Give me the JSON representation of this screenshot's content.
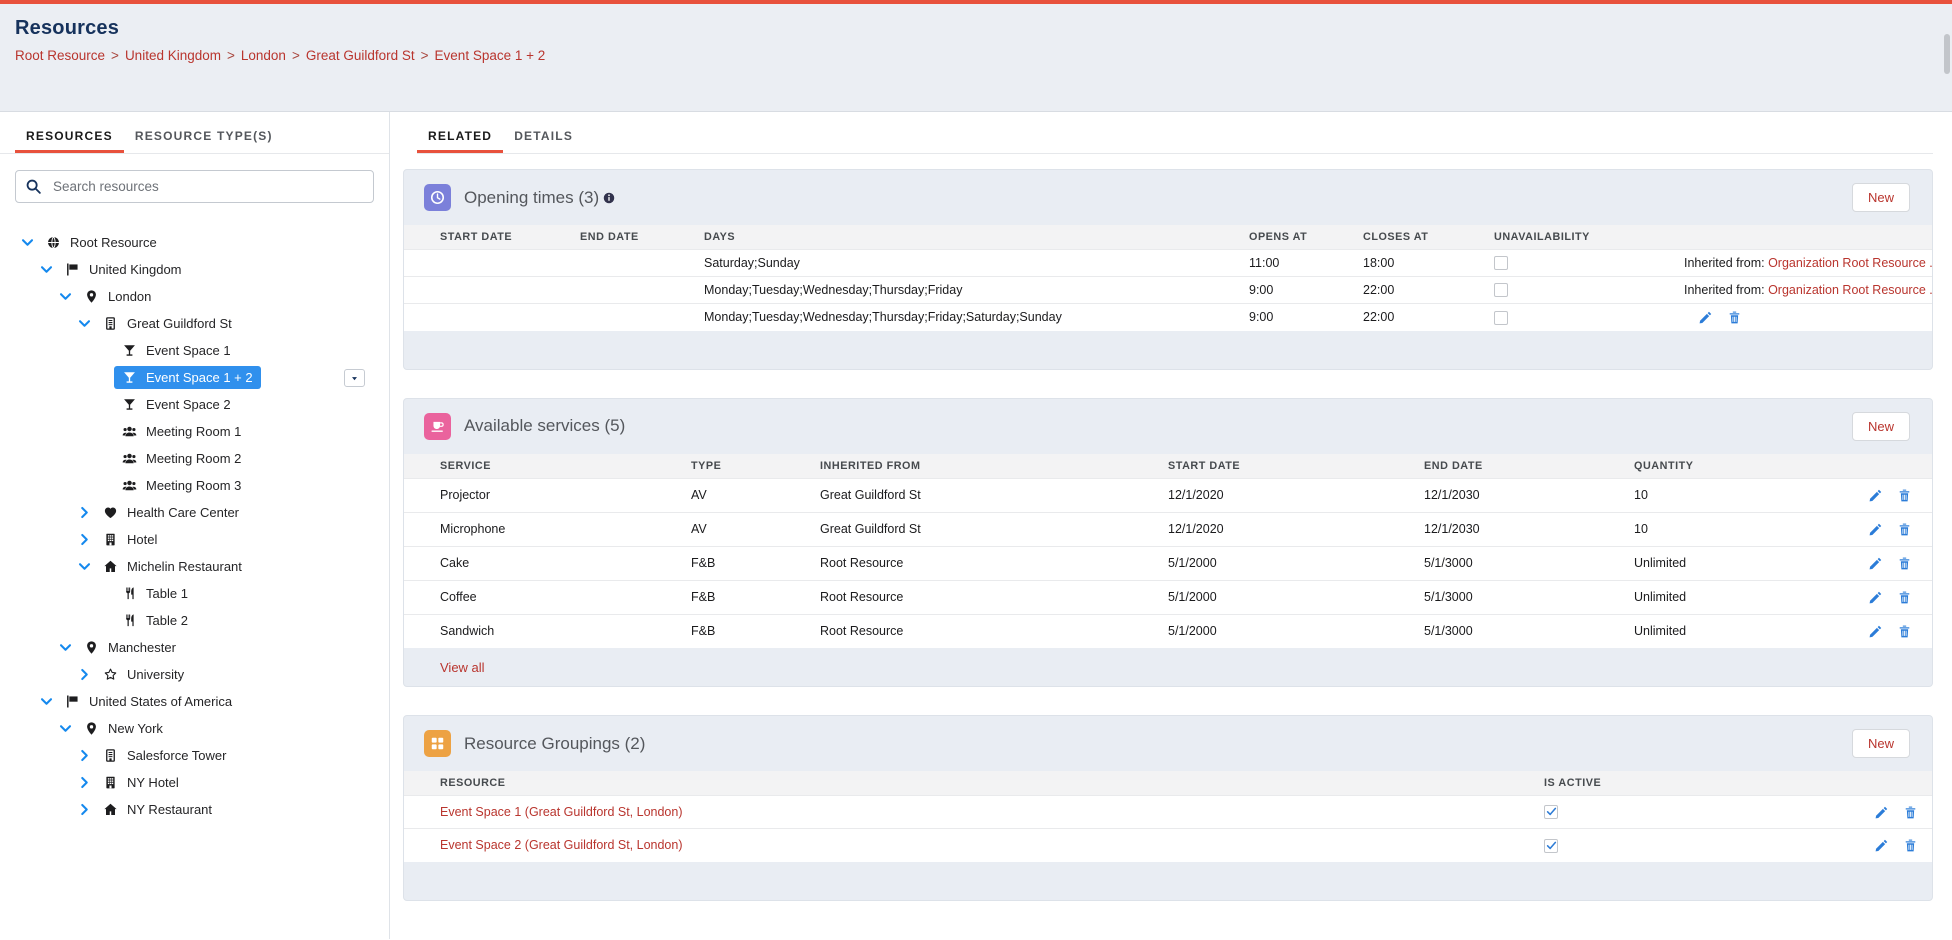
{
  "page": {
    "title": "Resources",
    "breadcrumb": [
      "Root Resource",
      "United Kingdom",
      "London",
      "Great Guildford St",
      "Event Space 1 + 2"
    ]
  },
  "colors": {
    "accent_red": "#e8513c",
    "link_red": "#b9352e",
    "title_navy": "#16325c",
    "selected_blue": "#3090ed",
    "chevron_blue": "#1589ee",
    "action_blue": "#2b7cd8",
    "opening_tile": "#7b80da",
    "services_tile": "#ea639d",
    "groupings_tile": "#eda243"
  },
  "sidebar": {
    "tabs": [
      {
        "label": "RESOURCES",
        "active": true
      },
      {
        "label": "RESOURCE TYPE(S)",
        "active": false
      }
    ],
    "search_placeholder": "Search resources",
    "tree": [
      {
        "label": "Root Resource",
        "icon": "globe-icon",
        "level": 0,
        "expand": "down"
      },
      {
        "label": "United Kingdom",
        "icon": "flag-icon",
        "level": 1,
        "expand": "down"
      },
      {
        "label": "London",
        "icon": "pin-icon",
        "level": 2,
        "expand": "down"
      },
      {
        "label": "Great Guildford St",
        "icon": "building-outline-icon",
        "level": 3,
        "expand": "down"
      },
      {
        "label": "Event Space 1",
        "icon": "cocktail-icon",
        "level": 4,
        "expand": "none"
      },
      {
        "label": "Event Space 1 + 2",
        "icon": "cocktail-icon",
        "level": 4,
        "expand": "none",
        "selected": true,
        "has_menu": true
      },
      {
        "label": "Event Space 2",
        "icon": "cocktail-icon",
        "level": 4,
        "expand": "none"
      },
      {
        "label": "Meeting Room 1",
        "icon": "people-icon",
        "level": 4,
        "expand": "none"
      },
      {
        "label": "Meeting Room 2",
        "icon": "people-icon",
        "level": 4,
        "expand": "none"
      },
      {
        "label": "Meeting Room 3",
        "icon": "people-icon",
        "level": 4,
        "expand": "none"
      },
      {
        "label": "Health Care Center",
        "icon": "heart-icon",
        "level": 3,
        "expand": "right"
      },
      {
        "label": "Hotel",
        "icon": "hotel-icon",
        "level": 3,
        "expand": "right"
      },
      {
        "label": "Michelin Restaurant",
        "icon": "home-icon",
        "level": 3,
        "expand": "down"
      },
      {
        "label": "Table 1",
        "icon": "utensils-icon",
        "level": 4,
        "expand": "none"
      },
      {
        "label": "Table 2",
        "icon": "utensils-icon",
        "level": 4,
        "expand": "none"
      },
      {
        "label": "Manchester",
        "icon": "pin-icon",
        "level": 2,
        "expand": "down"
      },
      {
        "label": "University",
        "icon": "star-icon",
        "level": 3,
        "expand": "right"
      },
      {
        "label": "United States of America",
        "icon": "flag-icon",
        "level": 1,
        "expand": "down"
      },
      {
        "label": "New York",
        "icon": "pin-icon",
        "level": 2,
        "expand": "down"
      },
      {
        "label": "Salesforce Tower",
        "icon": "building-outline-icon",
        "level": 3,
        "expand": "right"
      },
      {
        "label": "NY Hotel",
        "icon": "hotel-icon",
        "level": 3,
        "expand": "right"
      },
      {
        "label": "NY Restaurant",
        "icon": "home-icon",
        "level": 3,
        "expand": "right"
      }
    ]
  },
  "main": {
    "tabs": [
      {
        "label": "RELATED",
        "active": true
      },
      {
        "label": "DETAILS",
        "active": false
      }
    ],
    "cards": [
      {
        "id": "opening-times",
        "title": "Opening times (3)",
        "icon": "clock-icon",
        "icon_bg": "#7b80da",
        "has_info": true,
        "new_label": "New",
        "columns": [
          "START DATE",
          "END DATE",
          "DAYS",
          "OPENS AT",
          "CLOSES AT",
          "UNAVAILABILITY",
          ""
        ],
        "rows": [
          {
            "start_date": "",
            "end_date": "",
            "days": "Saturday;Sunday",
            "opens_at": "11:00",
            "closes_at": "18:00",
            "unavailability": false,
            "inherited_prefix": "Inherited from:",
            "inherited_link": "Organization Root Resource ."
          },
          {
            "start_date": "",
            "end_date": "",
            "days": "Monday;Tuesday;Wednesday;Thursday;Friday",
            "opens_at": "9:00",
            "closes_at": "22:00",
            "unavailability": false,
            "inherited_prefix": "Inherited from:",
            "inherited_link": "Organization Root Resource ."
          },
          {
            "start_date": "",
            "end_date": "",
            "days": "Monday;Tuesday;Wednesday;Thursday;Friday;Saturday;Sunday",
            "opens_at": "9:00",
            "closes_at": "22:00",
            "unavailability": false,
            "actions": true
          }
        ]
      },
      {
        "id": "available-services",
        "title": "Available services (5)",
        "icon": "cup-icon",
        "icon_bg": "#ea639d",
        "has_info": false,
        "new_label": "New",
        "columns": [
          "SERVICE",
          "TYPE",
          "INHERITED FROM",
          "START DATE",
          "END DATE",
          "QUANTITY",
          ""
        ],
        "rows": [
          {
            "service": "Projector",
            "type": "AV",
            "inherited_from": "Great Guildford St",
            "start_date": "12/1/2020",
            "end_date": "12/1/2030",
            "quantity": "10"
          },
          {
            "service": "Microphone",
            "type": "AV",
            "inherited_from": "Great Guildford St",
            "start_date": "12/1/2020",
            "end_date": "12/1/2030",
            "quantity": "10"
          },
          {
            "service": "Cake",
            "type": "F&B",
            "inherited_from": "Root Resource",
            "start_date": "5/1/2000",
            "end_date": "5/1/3000",
            "quantity": "Unlimited"
          },
          {
            "service": "Coffee",
            "type": "F&B",
            "inherited_from": "Root Resource",
            "start_date": "5/1/2000",
            "end_date": "5/1/3000",
            "quantity": "Unlimited"
          },
          {
            "service": "Sandwich",
            "type": "F&B",
            "inherited_from": "Root Resource",
            "start_date": "5/1/2000",
            "end_date": "5/1/3000",
            "quantity": "Unlimited"
          }
        ],
        "view_all": "View all"
      },
      {
        "id": "resource-groupings",
        "title": "Resource Groupings (2)",
        "icon": "grouping-icon",
        "icon_bg": "#eda243",
        "has_info": false,
        "new_label": "New",
        "columns": [
          "RESOURCE",
          "IS ACTIVE",
          ""
        ],
        "rows": [
          {
            "resource": "Event Space 1 (Great Guildford St, London)",
            "is_active": true
          },
          {
            "resource": "Event Space 2 (Great Guildford St, London)",
            "is_active": true
          }
        ]
      }
    ]
  }
}
